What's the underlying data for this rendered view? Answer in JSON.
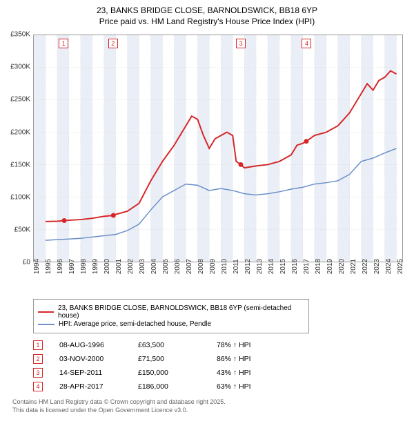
{
  "title_line1": "23, BANKS BRIDGE CLOSE, BARNOLDSWICK, BB18 6YP",
  "title_line2": "Price paid vs. HM Land Registry's House Price Index (HPI)",
  "chart": {
    "type": "line",
    "background_color": "#ffffff",
    "band_color": "#eaeef6",
    "grid_color": "#cccccc",
    "xlim": [
      1994,
      2025.5
    ],
    "ylim": [
      0,
      350000
    ],
    "ytick_step": 50000,
    "xtick_step": 1,
    "ylabels": [
      "£0",
      "£50K",
      "£100K",
      "£150K",
      "£200K",
      "£250K",
      "£300K",
      "£350K"
    ],
    "xlabels": [
      "1994",
      "1995",
      "1996",
      "1997",
      "1998",
      "1999",
      "2000",
      "2001",
      "2002",
      "2003",
      "2004",
      "2005",
      "2006",
      "2007",
      "2008",
      "2009",
      "2010",
      "2011",
      "2012",
      "2013",
      "2014",
      "2015",
      "2016",
      "2017",
      "2018",
      "2019",
      "2020",
      "2021",
      "2022",
      "2023",
      "2024",
      "2025"
    ],
    "series": [
      {
        "name": "23, BANKS BRIDGE CLOSE, BARNOLDSWICK, BB18 6YP (semi-detached house)",
        "color": "#d62728",
        "width": 2,
        "points": [
          [
            1995,
            62000
          ],
          [
            1996,
            62500
          ],
          [
            1996.6,
            63500
          ],
          [
            1997,
            64000
          ],
          [
            1998,
            65000
          ],
          [
            1999,
            67000
          ],
          [
            2000,
            70000
          ],
          [
            2000.8,
            71500
          ],
          [
            2001,
            73000
          ],
          [
            2002,
            78000
          ],
          [
            2003,
            90000
          ],
          [
            2004,
            125000
          ],
          [
            2005,
            155000
          ],
          [
            2006,
            180000
          ],
          [
            2007,
            210000
          ],
          [
            2007.5,
            225000
          ],
          [
            2008,
            220000
          ],
          [
            2008.5,
            195000
          ],
          [
            2009,
            175000
          ],
          [
            2009.5,
            190000
          ],
          [
            2010,
            195000
          ],
          [
            2010.5,
            200000
          ],
          [
            2011,
            195000
          ],
          [
            2011.3,
            155000
          ],
          [
            2011.7,
            150000
          ],
          [
            2012,
            145000
          ],
          [
            2013,
            148000
          ],
          [
            2014,
            150000
          ],
          [
            2015,
            155000
          ],
          [
            2016,
            165000
          ],
          [
            2016.5,
            180000
          ],
          [
            2017,
            183000
          ],
          [
            2017.3,
            186000
          ],
          [
            2018,
            195000
          ],
          [
            2019,
            200000
          ],
          [
            2020,
            210000
          ],
          [
            2021,
            230000
          ],
          [
            2022,
            260000
          ],
          [
            2022.5,
            275000
          ],
          [
            2023,
            265000
          ],
          [
            2023.5,
            280000
          ],
          [
            2024,
            285000
          ],
          [
            2024.5,
            295000
          ],
          [
            2025,
            290000
          ]
        ]
      },
      {
        "name": "HPI: Average price, semi-detached house, Pendle",
        "color": "#6b8fc9",
        "width": 1.5,
        "points": [
          [
            1995,
            33000
          ],
          [
            1996,
            34000
          ],
          [
            1997,
            35000
          ],
          [
            1998,
            36000
          ],
          [
            1999,
            38000
          ],
          [
            2000,
            40000
          ],
          [
            2001,
            42000
          ],
          [
            2002,
            48000
          ],
          [
            2003,
            58000
          ],
          [
            2004,
            80000
          ],
          [
            2005,
            100000
          ],
          [
            2006,
            110000
          ],
          [
            2007,
            120000
          ],
          [
            2008,
            118000
          ],
          [
            2009,
            110000
          ],
          [
            2010,
            113000
          ],
          [
            2011,
            110000
          ],
          [
            2012,
            105000
          ],
          [
            2013,
            103000
          ],
          [
            2014,
            105000
          ],
          [
            2015,
            108000
          ],
          [
            2016,
            112000
          ],
          [
            2017,
            115000
          ],
          [
            2018,
            120000
          ],
          [
            2019,
            122000
          ],
          [
            2020,
            125000
          ],
          [
            2021,
            135000
          ],
          [
            2022,
            155000
          ],
          [
            2023,
            160000
          ],
          [
            2024,
            168000
          ],
          [
            2025,
            175000
          ]
        ]
      }
    ],
    "markers": [
      {
        "n": "1",
        "x": 1996.6,
        "y": 63500,
        "color": "#d62728"
      },
      {
        "n": "2",
        "x": 2000.8,
        "y": 71500,
        "color": "#d62728"
      },
      {
        "n": "3",
        "x": 2011.7,
        "y": 150000,
        "color": "#d62728"
      },
      {
        "n": "4",
        "x": 2017.3,
        "y": 186000,
        "color": "#d62728"
      }
    ]
  },
  "legend": [
    {
      "color": "#d62728",
      "label": "23, BANKS BRIDGE CLOSE, BARNOLDSWICK, BB18 6YP (semi-detached house)"
    },
    {
      "color": "#6b8fc9",
      "label": "HPI: Average price, semi-detached house, Pendle"
    }
  ],
  "table": {
    "columns": [
      "marker",
      "date",
      "price",
      "delta"
    ],
    "rows": [
      {
        "n": "1",
        "color": "#d62728",
        "date": "08-AUG-1996",
        "price": "£63,500",
        "delta": "78% ↑ HPI"
      },
      {
        "n": "2",
        "color": "#d62728",
        "date": "03-NOV-2000",
        "price": "£71,500",
        "delta": "86% ↑ HPI"
      },
      {
        "n": "3",
        "color": "#d62728",
        "date": "14-SEP-2011",
        "price": "£150,000",
        "delta": "43% ↑ HPI"
      },
      {
        "n": "4",
        "color": "#d62728",
        "date": "28-APR-2017",
        "price": "£186,000",
        "delta": "63% ↑ HPI"
      }
    ]
  },
  "footer_line1": "Contains HM Land Registry data © Crown copyright and database right 2025.",
  "footer_line2": "This data is licensed under the Open Government Licence v3.0."
}
